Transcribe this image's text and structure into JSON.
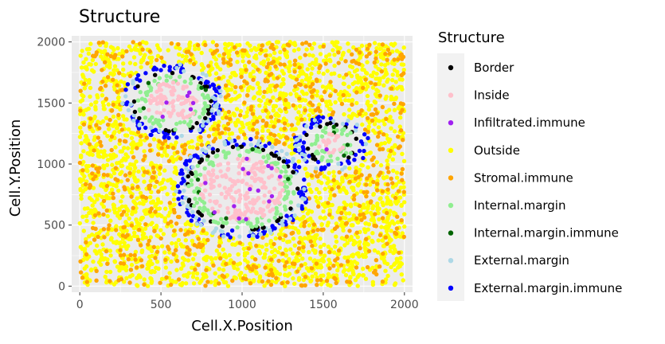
{
  "chart_data": {
    "type": "scatter",
    "title": "Structure",
    "xlabel": "Cell.X.Position",
    "ylabel": "Cell.Y.Position",
    "xlim": [
      -50,
      2050
    ],
    "ylim": [
      -50,
      2050
    ],
    "x_ticks": [
      "0",
      "500",
      "1000",
      "1500",
      "2000"
    ],
    "y_ticks": [
      "0",
      "500",
      "1000",
      "1500",
      "2000"
    ],
    "x_tick_values": [
      0,
      500,
      1000,
      1500,
      2000
    ],
    "y_tick_values": [
      0,
      500,
      1000,
      1500,
      2000
    ],
    "grid": true,
    "legend_position": "right",
    "legend": {
      "title": "Structure",
      "entries": [
        {
          "label": "Border",
          "color": "#000000"
        },
        {
          "label": "Inside",
          "color": "#FFC0CB"
        },
        {
          "label": "Infiltrated.immune",
          "color": "#A020F0"
        },
        {
          "label": "Outside",
          "color": "#FFFF00"
        },
        {
          "label": "Stromal.immune",
          "color": "#FFA500"
        },
        {
          "label": "Internal.margin",
          "color": "#90EE90"
        },
        {
          "label": "Internal.margin.immune",
          "color": "#006400"
        },
        {
          "label": "External.margin",
          "color": "#ADD8E6"
        },
        {
          "label": "External.margin.immune",
          "color": "#0000FF"
        }
      ]
    },
    "clusters": [
      {
        "center": [
          570,
          1510
        ],
        "radius": 230
      },
      {
        "center": [
          1550,
          1170
        ],
        "radius": 150
      },
      {
        "center": [
          1000,
          800
        ],
        "radius": 330
      }
    ],
    "domain_bounds": [
      0,
      2000
    ]
  }
}
